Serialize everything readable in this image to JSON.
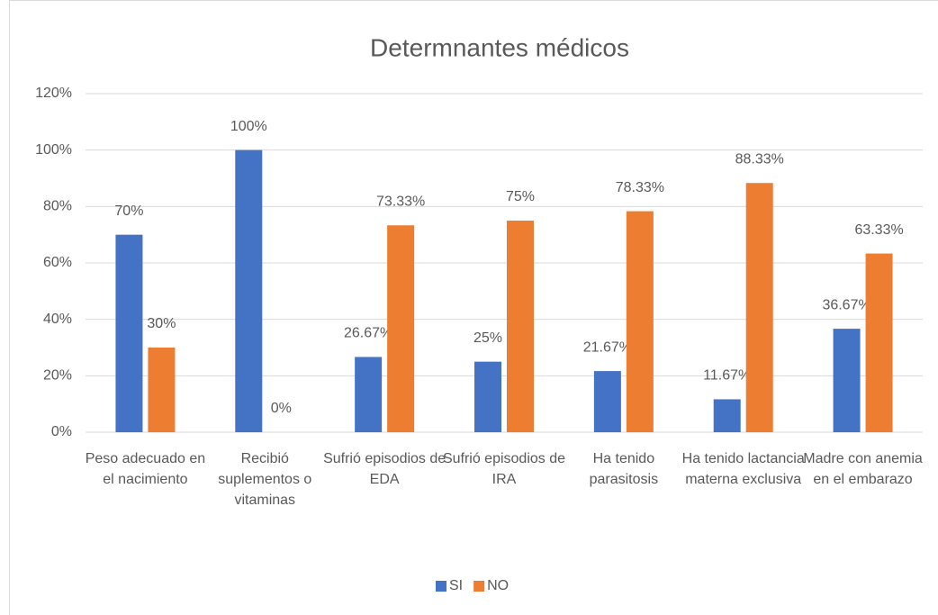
{
  "chart_data": {
    "type": "bar",
    "title": "Determnantes médicos",
    "categories": [
      "Peso adecuado en el nacimiento",
      "Recibió suplementos o vitaminas",
      "Sufrió episodios de EDA",
      "Sufrió episodios de IRA",
      "Ha tenido parasitosis",
      "Ha tenido lactancia materna exclusiva",
      "Madre con anemia en el embarazo"
    ],
    "series": [
      {
        "name": "SI",
        "color": "#4472c4",
        "values": [
          70,
          100,
          26.67,
          25,
          21.67,
          11.67,
          36.67
        ],
        "value_labels": [
          "70%",
          "100%",
          "26.67%",
          "25%",
          "21.67%",
          "11.67%",
          "36.67%"
        ]
      },
      {
        "name": "NO",
        "color": "#ed7d31",
        "values": [
          30,
          0,
          73.33,
          75,
          78.33,
          88.33,
          63.33
        ],
        "value_labels": [
          "30%",
          "0%",
          "73.33%",
          "75%",
          "78.33%",
          "88.33%",
          "63.33%"
        ]
      }
    ],
    "ylim": [
      0,
      120
    ],
    "yticks": [
      {
        "value": 0,
        "label": "0%"
      },
      {
        "value": 20,
        "label": "20%"
      },
      {
        "value": 40,
        "label": "40%"
      },
      {
        "value": 60,
        "label": "60%"
      },
      {
        "value": 80,
        "label": "80%"
      },
      {
        "value": 100,
        "label": "100%"
      },
      {
        "value": 120,
        "label": "120%"
      }
    ],
    "grid": true,
    "legend": "bottom"
  }
}
